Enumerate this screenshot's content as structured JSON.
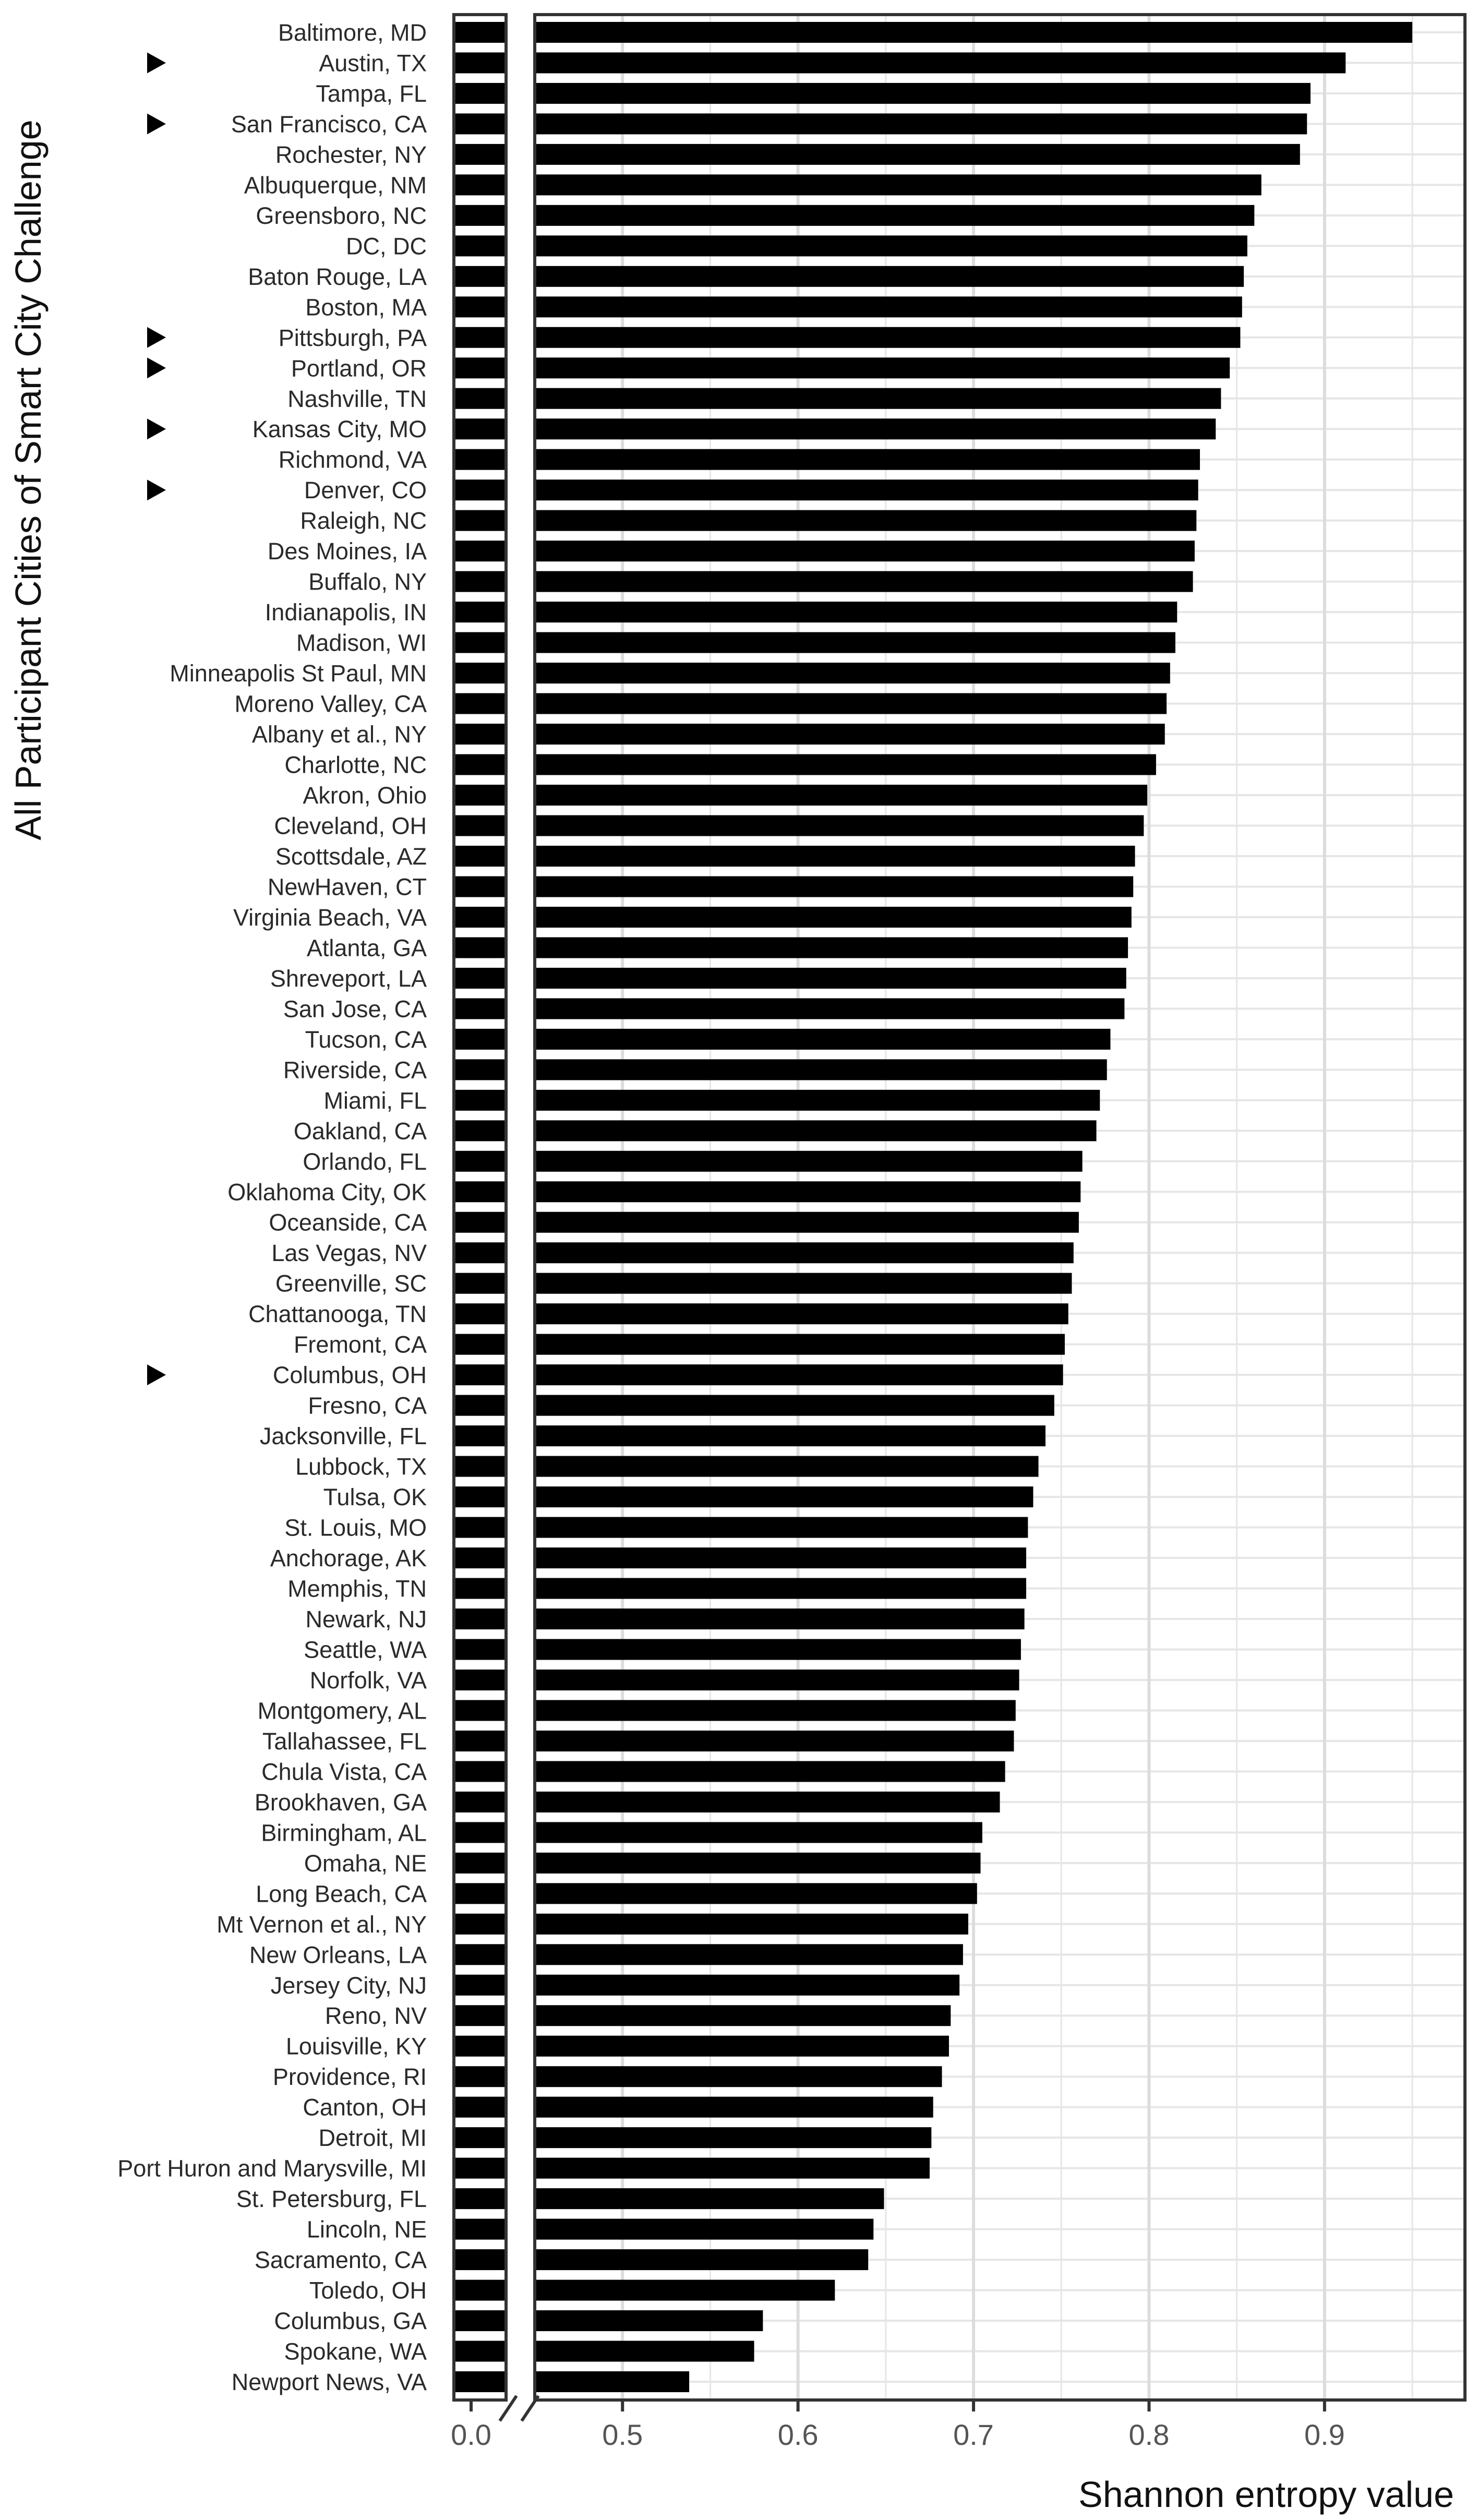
{
  "chart_data": {
    "type": "bar",
    "orientation": "horizontal",
    "xlabel": "Shannon entropy value",
    "ylabel": "All Participant Cities of Smart City Challenge",
    "axis_break": true,
    "xlim_broken": [
      0.45,
      0.98
    ],
    "x_ticks": [
      "0.0",
      "0.5",
      "0.6",
      "0.7",
      "0.8",
      "0.9"
    ],
    "grid": true,
    "categories": [
      "Baltimore, MD",
      "Austin, TX",
      "Tampa, FL",
      "San Francisco, CA",
      "Rochester, NY",
      "Albuquerque, NM",
      "Greensboro, NC",
      "DC, DC",
      "Baton Rouge, LA",
      "Boston, MA",
      "Pittsburgh, PA",
      "Portland, OR",
      "Nashville, TN",
      "Kansas City, MO",
      "Richmond, VA",
      "Denver, CO",
      "Raleigh, NC",
      "Des Moines, IA",
      "Buffalo, NY",
      "Indianapolis, IN",
      "Madison, WI",
      "Minneapolis St Paul, MN",
      "Moreno Valley, CA",
      "Albany et al., NY",
      "Charlotte, NC",
      "Akron, Ohio",
      "Cleveland, OH",
      "Scottsdale, AZ",
      "NewHaven, CT",
      "Virginia Beach, VA",
      "Atlanta, GA",
      "Shreveport, LA",
      "San Jose, CA",
      "Tucson, CA",
      "Riverside, CA",
      "Miami, FL",
      "Oakland, CA",
      "Orlando, FL",
      "Oklahoma City, OK",
      "Oceanside, CA",
      "Las Vegas, NV",
      "Greenville, SC",
      "Chattanooga, TN",
      "Fremont, CA",
      "Columbus, OH",
      "Fresno, CA",
      "Jacksonville, FL",
      "Lubbock, TX",
      "Tulsa, OK",
      "St. Louis, MO",
      "Anchorage, AK",
      "Memphis, TN",
      "Newark, NJ",
      "Seattle, WA",
      "Norfolk, VA",
      "Montgomery, AL",
      "Tallahassee, FL",
      "Chula Vista, CA",
      "Brookhaven, GA",
      "Birmingham, AL",
      "Omaha, NE",
      "Long Beach, CA",
      "Mt Vernon et al., NY",
      "New Orleans, LA",
      "Jersey City, NJ",
      "Reno, NV",
      "Louisville, KY",
      "Providence, RI",
      "Canton, OH",
      "Detroit, MI",
      "Port Huron and Marysville, MI",
      "St. Petersburg, FL",
      "Lincoln, NE",
      "Sacramento, CA",
      "Toledo, OH",
      "Columbus, GA",
      "Spokane, WA",
      "Newport News, VA"
    ],
    "values": [
      0.95,
      0.912,
      0.892,
      0.89,
      0.886,
      0.864,
      0.86,
      0.856,
      0.854,
      0.853,
      0.852,
      0.846,
      0.841,
      0.838,
      0.829,
      0.828,
      0.827,
      0.826,
      0.825,
      0.816,
      0.815,
      0.812,
      0.81,
      0.809,
      0.804,
      0.799,
      0.797,
      0.792,
      0.791,
      0.79,
      0.788,
      0.787,
      0.786,
      0.778,
      0.776,
      0.772,
      0.77,
      0.762,
      0.761,
      0.76,
      0.757,
      0.756,
      0.754,
      0.752,
      0.751,
      0.746,
      0.741,
      0.737,
      0.734,
      0.731,
      0.73,
      0.73,
      0.729,
      0.727,
      0.726,
      0.724,
      0.723,
      0.718,
      0.715,
      0.705,
      0.704,
      0.702,
      0.697,
      0.694,
      0.692,
      0.687,
      0.686,
      0.682,
      0.677,
      0.676,
      0.675,
      0.649,
      0.643,
      0.64,
      0.621,
      0.58,
      0.575,
      0.538
    ],
    "marked_categories": [
      "Austin, TX",
      "San Francisco, CA",
      "Pittsburgh, PA",
      "Portland, OR",
      "Kansas City, MO",
      "Denver, CO",
      "Columbus, OH"
    ],
    "bar_color": "#000000",
    "grid_color": "#e6e6e6",
    "marker_icon": "triangle-right-icon"
  }
}
